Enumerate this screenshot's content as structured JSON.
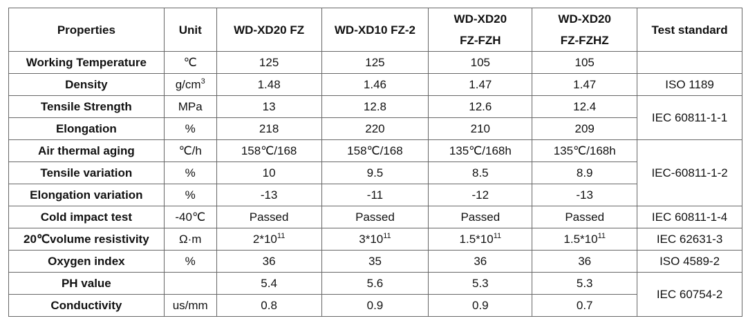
{
  "table": {
    "header": [
      "Properties",
      "Unit",
      [
        "WD-XD20 FZ"
      ],
      [
        "WD-XD10 FZ-2"
      ],
      [
        "WD-XD20",
        "FZ-FZH"
      ],
      [
        "WD-XD20",
        "FZ-FZHZ"
      ],
      "Test standard"
    ],
    "rows": [
      [
        "Working Temperature",
        "℃",
        "125",
        "125",
        "105",
        "105"
      ],
      [
        "Density",
        {
          "text": "g/cm",
          "sup": "3"
        },
        "1.48",
        "1.46",
        "1.47",
        "1.47"
      ],
      [
        "Tensile Strength",
        "MPa",
        "13",
        "12.8",
        "12.6",
        "12.4"
      ],
      [
        "Elongation",
        "%",
        "218",
        "220",
        "210",
        "209"
      ],
      [
        "Air thermal aging",
        "℃/h",
        "158℃/168",
        "158℃/168",
        "135℃/168h",
        "135℃/168h"
      ],
      [
        "Tensile variation",
        "%",
        "10",
        "9.5",
        "8.5",
        "8.9"
      ],
      [
        "Elongation variation",
        "%",
        "-13",
        "-11",
        "-12",
        "-13"
      ],
      [
        "Cold impact test",
        "-40℃",
        "Passed",
        "Passed",
        "Passed",
        "Passed"
      ],
      [
        "20℃volume resistivity",
        "Ω·m",
        {
          "text": "2*10",
          "sup": "11"
        },
        {
          "text": "3*10",
          "sup": "11"
        },
        {
          "text": "1.5*10",
          "sup": "11"
        },
        {
          "text": "1.5*10",
          "sup": "11"
        }
      ],
      [
        "Oxygen index",
        "%",
        "36",
        "35",
        "36",
        "36"
      ],
      [
        "PH value",
        null,
        "5.4",
        "5.6",
        "5.3",
        "5.3"
      ],
      [
        "Conductivity",
        "us/mm",
        "0.8",
        "0.9",
        "0.9",
        "0.7"
      ]
    ],
    "standards": [
      "ISO 1189",
      "IEC 60811-1-1",
      "IEC-60811-1-2",
      "IEC 60811-1-4",
      "IEC 62631-3",
      "ISO 4589-2",
      "IEC 60754-2"
    ]
  }
}
